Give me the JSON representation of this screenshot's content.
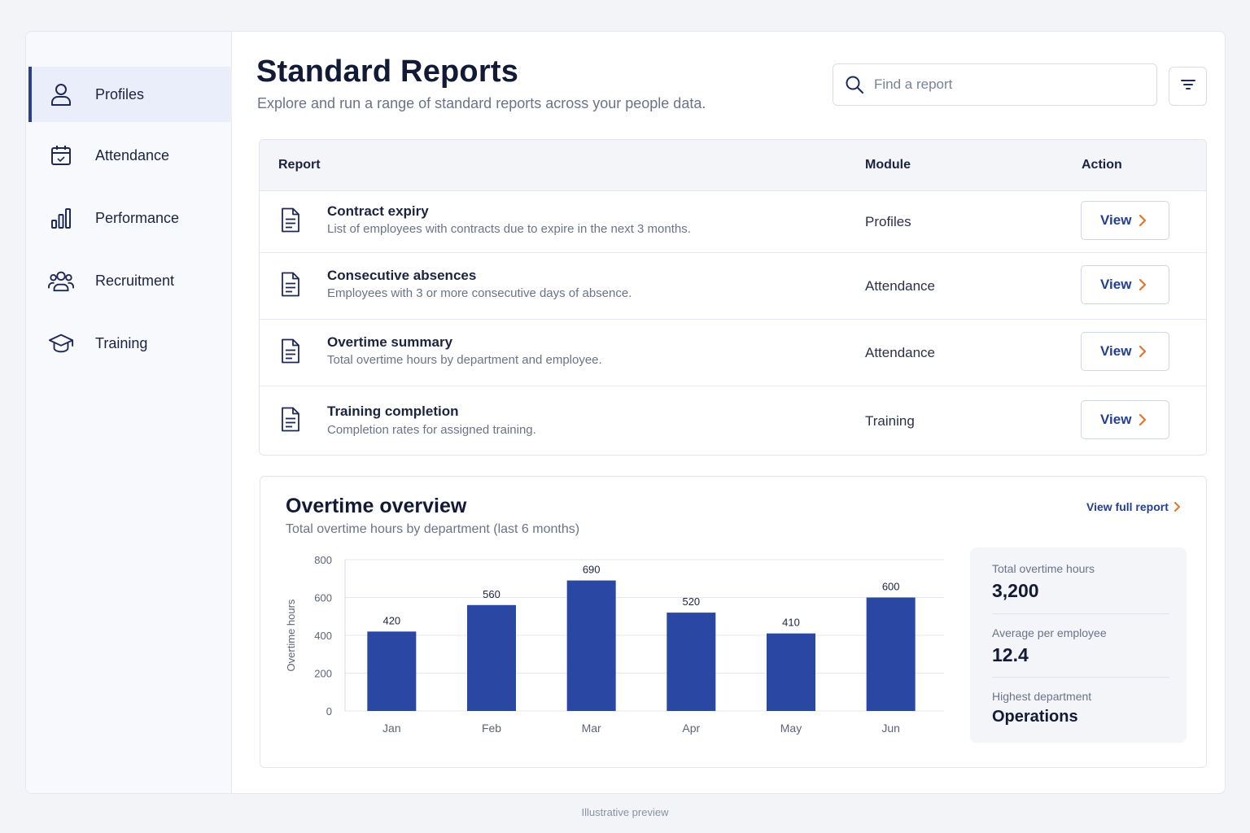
{
  "sidebar": {
    "items": [
      {
        "label": "Profiles",
        "icon": "user-icon",
        "active": true
      },
      {
        "label": "Attendance",
        "icon": "calendar-icon"
      },
      {
        "label": "Performance",
        "icon": "bar-chart-icon"
      },
      {
        "label": "Recruitment",
        "icon": "people-icon"
      },
      {
        "label": "Training",
        "icon": "graduation-cap-icon"
      }
    ]
  },
  "header": {
    "title": "Standard Reports",
    "subtitle": "Explore and run a range of standard reports across your people data.",
    "search_placeholder": "Find a report"
  },
  "table": {
    "columns": {
      "report": "Report",
      "module": "Module",
      "action": "Action"
    },
    "rows": [
      {
        "title": "Contract expiry",
        "description": "List of employees with contracts due to expire in the next 3 months.",
        "module": "Profiles",
        "action": "View"
      },
      {
        "title": "Consecutive absences",
        "description": "Employees with 3 or more consecutive days of absence.",
        "module": "Attendance",
        "action": "View"
      },
      {
        "title": "Overtime summary",
        "description": "Total overtime hours by department and employee.",
        "module": "Attendance",
        "action": "View"
      },
      {
        "title": "Training completion",
        "description": "Completion rates for assigned training.",
        "module": "Training",
        "action": "View"
      }
    ]
  },
  "overview": {
    "title": "Overtime overview",
    "subtitle": "Total overtime hours by department (last 6 months)",
    "full_report_link": "View full report",
    "stats": [
      {
        "label": "Total overtime hours",
        "value": "3,200"
      },
      {
        "label": "Average per employee",
        "value": "12.4"
      },
      {
        "label": "Highest department",
        "value": "Operations"
      }
    ]
  },
  "chart_data": {
    "type": "bar",
    "categories": [
      "Jan",
      "Feb",
      "Mar",
      "Apr",
      "May",
      "Jun"
    ],
    "values": [
      420,
      560,
      690,
      520,
      410,
      600
    ],
    "ylabel": "Overtime hours",
    "xlabel": "",
    "ylim": [
      0,
      800
    ],
    "yticks": [
      0,
      200,
      400,
      600,
      800
    ],
    "grid": true,
    "bar_color": "#2a47a3"
  },
  "colors": {
    "accent": "#24408f",
    "chevron": "#e8742a",
    "bar": "#2a47a3"
  },
  "footer": "Illustrative preview"
}
